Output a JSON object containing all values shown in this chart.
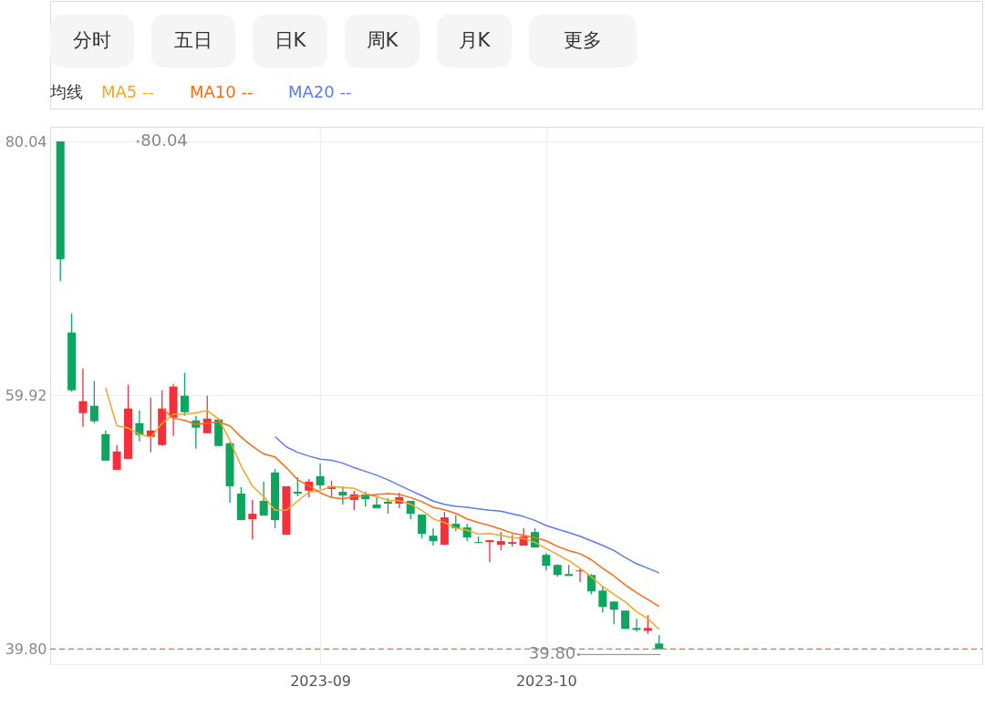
{
  "chart_data": {
    "type": "candlestick",
    "annotations": [
      "分时",
      "五日",
      "日K",
      "周K",
      "月K",
      "更多",
      "80.04",
      {
        "text": "39.80",
        "y": 39.8
      }
    ],
    "legend_title": "均线",
    "legend": "top left",
    "grid": true,
    "categories": [
      null,
      null,
      null,
      null,
      null,
      null,
      null,
      null,
      null,
      null,
      null,
      null,
      null,
      null,
      null,
      null,
      null,
      null,
      null,
      null,
      null,
      null,
      null,
      "2023-09",
      null,
      null,
      null,
      null,
      null,
      null,
      null,
      null,
      null,
      null,
      null,
      null,
      null,
      null,
      null,
      null,
      null,
      null,
      null,
      "2023-10",
      null,
      null,
      null,
      null,
      null,
      null,
      null,
      null,
      null,
      null
    ],
    "ohlc": [
      [
        80.04,
        80.04,
        68.95,
        70.69
      ],
      [
        64.89,
        66.41,
        60.2,
        60.32
      ],
      [
        58.51,
        62.06,
        57.42,
        59.45
      ],
      [
        59.09,
        61.05,
        57.71,
        57.86
      ],
      [
        56.84,
        57.13,
        54.74,
        54.74
      ],
      [
        54.01,
        55.97,
        54.01,
        55.46
      ],
      [
        54.88,
        60.76,
        54.88,
        58.87
      ],
      [
        57.71,
        58.73,
        56.26,
        56.77
      ],
      [
        56.62,
        59.74,
        55.39,
        57.13
      ],
      [
        55.97,
        60.32,
        55.9,
        58.87
      ],
      [
        58.15,
        60.83,
        56.7,
        60.61
      ],
      [
        59.89,
        61.7,
        58.29,
        58.58
      ],
      [
        57.93,
        58.29,
        55.68,
        57.35
      ],
      [
        56.91,
        59.89,
        56.91,
        58.07
      ],
      [
        58.0,
        58.07,
        55.9,
        55.9
      ],
      [
        56.12,
        56.19,
        51.4,
        52.71
      ],
      [
        52.13,
        52.64,
        50.02,
        50.02
      ],
      [
        50.1,
        51.62,
        48.5,
        50.53
      ],
      [
        51.55,
        53.07,
        50.39,
        50.39
      ],
      [
        53.8,
        54.09,
        49.37,
        50.02
      ],
      [
        48.86,
        52.71,
        48.86,
        52.71
      ],
      [
        52.27,
        53.43,
        51.91,
        52.13
      ],
      [
        52.35,
        53.29,
        51.84,
        53.07
      ],
      [
        53.51,
        54.52,
        52.49,
        52.78
      ],
      [
        52.49,
        53.14,
        51.84,
        52.71
      ],
      [
        52.27,
        52.71,
        51.26,
        51.98
      ],
      [
        51.62,
        52.35,
        50.82,
        52.06
      ],
      [
        52.06,
        52.27,
        51.11,
        51.69
      ],
      [
        51.26,
        51.84,
        50.97,
        50.97
      ],
      [
        51.48,
        51.77,
        50.53,
        51.33
      ],
      [
        51.33,
        52.2,
        50.97,
        51.84
      ],
      [
        51.55,
        51.55,
        50.1,
        50.53
      ],
      [
        50.46,
        50.46,
        48.57,
        48.94
      ],
      [
        48.79,
        49.37,
        48.0,
        48.36
      ],
      [
        48.07,
        50.68,
        48.07,
        50.24
      ],
      [
        49.73,
        50.39,
        49.15,
        49.37
      ],
      [
        49.44,
        49.73,
        48.36,
        48.65
      ],
      [
        48.28,
        48.72,
        48.21,
        48.21
      ],
      [
        48.28,
        48.43,
        46.69,
        48.43
      ],
      [
        48.07,
        49.08,
        47.63,
        48.36
      ],
      [
        48.14,
        48.86,
        47.92,
        48.28
      ],
      [
        48.0,
        49.37,
        48.0,
        48.72
      ],
      [
        49.08,
        49.37,
        47.85,
        47.85
      ],
      [
        47.27,
        47.41,
        46.04,
        46.4
      ],
      [
        46.47,
        46.54,
        45.53,
        45.67
      ],
      [
        45.75,
        46.47,
        45.6,
        45.6
      ],
      [
        45.96,
        46.18,
        45.09,
        46.04
      ],
      [
        45.67,
        45.75,
        44.15,
        44.37
      ],
      [
        44.44,
        44.73,
        42.7,
        43.14
      ],
      [
        43.57,
        43.57,
        41.76,
        42.92
      ],
      [
        42.85,
        42.85,
        41.4,
        41.4
      ],
      [
        41.47,
        42.19,
        41.18,
        41.32
      ],
      [
        41.25,
        42.48,
        41.03,
        41.47
      ],
      [
        40.24,
        40.89,
        39.8,
        39.8
      ]
    ],
    "colors": [
      "#0da55f",
      "#0da55f",
      "#f5303a",
      "#0da55f",
      "#0da55f",
      "#f5303a",
      "#f5303a",
      "#0da55f",
      "#f5303a",
      "#f5303a",
      "#f5303a",
      "#0da55f",
      "#0da55f",
      "#f5303a",
      "#0da55f",
      "#0da55f",
      "#0da55f",
      "#f5303a",
      "#0da55f",
      "#0da55f",
      "#f5303a",
      "#0da55f",
      "#f5303a",
      "#0da55f",
      "#f5303a",
      "#0da55f",
      "#f5303a",
      "#0da55f",
      "#0da55f",
      "#0da55f",
      "#f5303a",
      "#0da55f",
      "#0da55f",
      "#0da55f",
      "#f5303a",
      "#0da55f",
      "#0da55f",
      "#0da55f",
      "#f5303a",
      "#f5303a",
      "#f5303a",
      "#f5303a",
      "#0da55f",
      "#0da55f",
      "#0da55f",
      "#0da55f",
      "#f5303a",
      "#0da55f",
      "#0da55f",
      "#0da55f",
      "#0da55f",
      "#0da55f",
      "#f5303a",
      "#0da55f"
    ],
    "series": [
      {
        "name": "MA5 --",
        "type": "line",
        "color": "#f5a623",
        "values": [
          null,
          null,
          null,
          null,
          60.52,
          57.49,
          57.33,
          56.84,
          56.6,
          57.69,
          58.42,
          58.42,
          58.53,
          58.7,
          58.05,
          56.36,
          54.3,
          52.72,
          51.89,
          50.8,
          50.8,
          51.53,
          52.25,
          52.37,
          52.69,
          52.61,
          52.54,
          52.13,
          51.89,
          51.6,
          51.57,
          51.28,
          50.8,
          50.12,
          49.83,
          49.39,
          49.23,
          48.91,
          48.96,
          48.81,
          48.63,
          48.57,
          48.26,
          47.78,
          47.29,
          46.81,
          46.2,
          45.53,
          44.75,
          44.15,
          43.55,
          42.77,
          42.21,
          41.37
        ]
      },
      {
        "name": "MA10 --",
        "type": "line",
        "color": "#ff6a13",
        "values": [
          null,
          null,
          null,
          null,
          null,
          null,
          null,
          null,
          null,
          58.89,
          58.1,
          57.93,
          57.62,
          57.69,
          57.81,
          57.49,
          56.6,
          55.88,
          55.27,
          55.03,
          54.18,
          53.22,
          52.73,
          52.2,
          51.81,
          51.71,
          51.89,
          51.96,
          52.06,
          52.13,
          52.06,
          51.81,
          51.48,
          51.04,
          50.84,
          50.55,
          50.12,
          49.83,
          49.59,
          49.3,
          48.99,
          48.81,
          48.63,
          48.38,
          47.94,
          47.61,
          47.36,
          46.88,
          46.2,
          45.6,
          44.88,
          44.27,
          43.72,
          43.19
        ]
      },
      {
        "name": "MA20 --",
        "type": "line",
        "color": "#5b7cf7",
        "values": [
          null,
          null,
          null,
          null,
          null,
          null,
          null,
          null,
          null,
          null,
          null,
          null,
          null,
          null,
          null,
          null,
          null,
          null,
          null,
          56.65,
          55.83,
          55.39,
          55.1,
          54.86,
          54.76,
          54.54,
          54.18,
          53.89,
          53.58,
          53.22,
          52.78,
          52.37,
          51.96,
          51.53,
          51.28,
          51.11,
          51.04,
          50.92,
          50.8,
          50.73,
          50.51,
          50.31,
          50.0,
          49.59,
          49.3,
          49.03,
          48.74,
          48.38,
          48.02,
          47.61,
          47.05,
          46.57,
          46.2,
          45.84
        ]
      }
    ],
    "ylim": [
      38.6,
      81.2
    ],
    "yticks": [
      80.04,
      59.92,
      {
        "value": 39.8,
        "label": "39.80"
      }
    ],
    "ref_lines": [
      {
        "axis": "y",
        "value": 39.8,
        "color": "#ff6a13",
        "line_style": "dashed"
      }
    ]
  }
}
